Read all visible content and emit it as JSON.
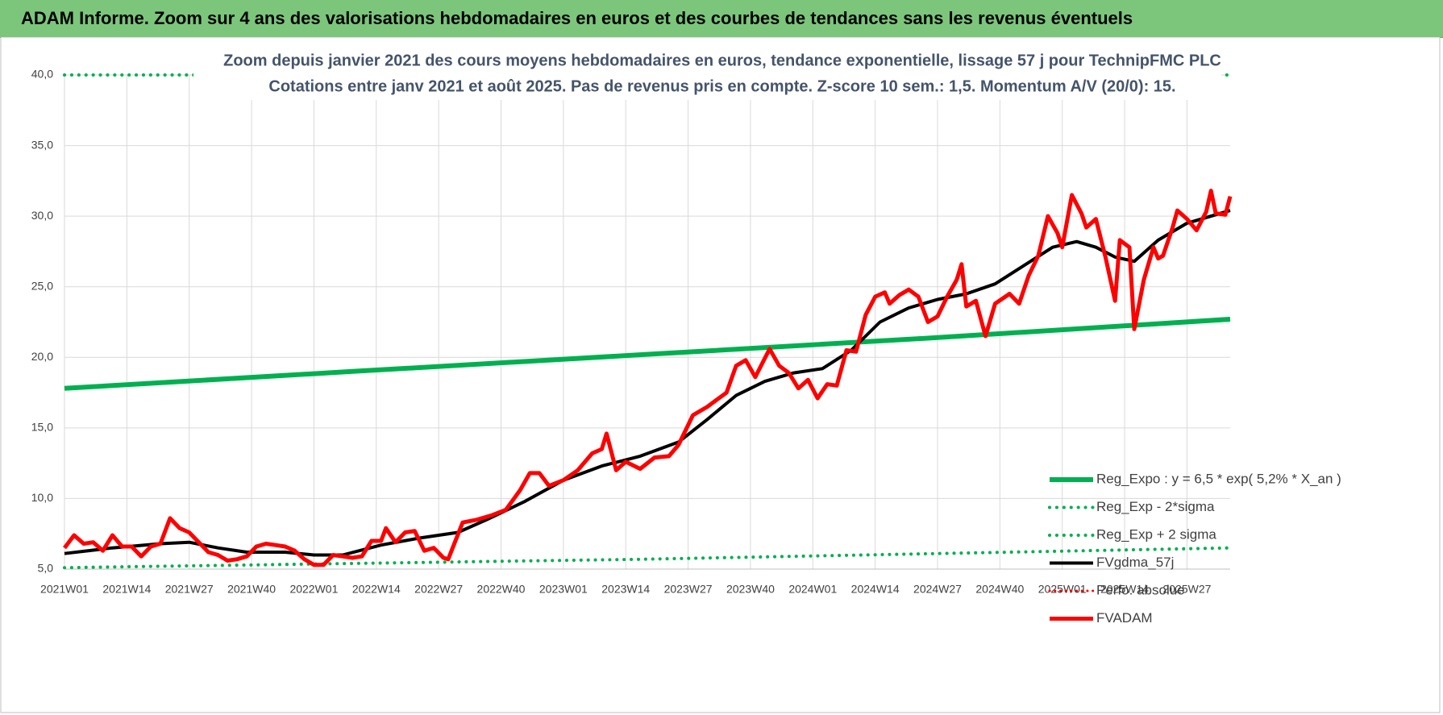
{
  "header": {
    "title": "ADAM Informe. Zoom sur 4 ans des valorisations hebdomadaires en euros et des courbes de tendances sans les revenus éventuels"
  },
  "chart_data": {
    "type": "line",
    "title": "Zoom depuis janvier 2021 des cours moyens hebdomadaires en euros, tendance exponentielle, lissage 57 j pour TechnipFMC PLC",
    "subtitle": "Cotations entre janv 2021 et août 2025.  Pas de revenus pris en compte. Z-score 10 sem.: 1,5. Momentum A/V (20/0): 15.",
    "xlim": [
      0,
      243
    ],
    "ylim": [
      5,
      40
    ],
    "grid": true,
    "legend": "lower right",
    "yticks": [
      {
        "value": 5,
        "label": "5,0"
      },
      {
        "value": 10,
        "label": "10,0"
      },
      {
        "value": 15,
        "label": "15,0"
      },
      {
        "value": 20,
        "label": "20,0"
      },
      {
        "value": 25,
        "label": "25,0"
      },
      {
        "value": 30,
        "label": "30,0"
      },
      {
        "value": 35,
        "label": "35,0"
      },
      {
        "value": 40,
        "label": "40,0"
      }
    ],
    "xticks": [
      {
        "value": 0,
        "label": "2021W01"
      },
      {
        "value": 13,
        "label": "2021W14"
      },
      {
        "value": 26,
        "label": "2021W27"
      },
      {
        "value": 39,
        "label": "2021W40"
      },
      {
        "value": 52,
        "label": "2022W01"
      },
      {
        "value": 65,
        "label": "2022W14"
      },
      {
        "value": 78,
        "label": "2022W27"
      },
      {
        "value": 91,
        "label": "2022W40"
      },
      {
        "value": 104,
        "label": "2023W01"
      },
      {
        "value": 117,
        "label": "2023W14"
      },
      {
        "value": 130,
        "label": "2023W27"
      },
      {
        "value": 143,
        "label": "2023W40"
      },
      {
        "value": 156,
        "label": "2024W01"
      },
      {
        "value": 169,
        "label": "2024W14"
      },
      {
        "value": 182,
        "label": "2024W27"
      },
      {
        "value": 195,
        "label": "2024W40"
      },
      {
        "value": 208,
        "label": "2025W01"
      },
      {
        "value": 221,
        "label": "2025W14"
      },
      {
        "value": 234,
        "label": "2025W27"
      }
    ],
    "series": [
      {
        "name": "Reg_Expo : y = 6,5 * exp( 5,2% *  X_an )",
        "color": "#00b050",
        "style": "solid",
        "width": 6,
        "x": [
          0,
          60,
          121,
          182,
          243
        ],
        "values": [
          17.8,
          19.0,
          20.2,
          21.4,
          22.7
        ]
      },
      {
        "name": "Reg_Exp - 2*sigma",
        "color": "#00b050",
        "style": "dotted",
        "width": 4,
        "x": [
          0,
          121,
          243
        ],
        "values": [
          5.1,
          5.7,
          6.5
        ]
      },
      {
        "name": "Reg_Exp + 2 sigma",
        "color": "#00b050",
        "style": "dotted",
        "width": 4,
        "x": [
          0,
          243
        ],
        "values": [
          40,
          40
        ]
      },
      {
        "name": "FVgdma_57j",
        "color": "#000000",
        "style": "solid",
        "width": 4,
        "x": [
          0,
          10,
          20,
          26,
          32,
          38,
          46,
          52,
          58,
          66,
          74,
          82,
          88,
          96,
          104,
          112,
          120,
          128,
          134,
          140,
          146,
          152,
          158,
          164,
          170,
          176,
          182,
          188,
          194,
          200,
          206,
          211,
          215,
          219,
          223,
          228,
          234,
          243
        ],
        "values": [
          6.1,
          6.5,
          6.8,
          6.9,
          6.5,
          6.2,
          6.2,
          6.0,
          6.0,
          6.7,
          7.2,
          7.6,
          8.5,
          9.8,
          11.3,
          12.3,
          13.0,
          14.0,
          15.6,
          17.3,
          18.3,
          18.9,
          19.2,
          20.5,
          22.5,
          23.5,
          24.1,
          24.5,
          25.2,
          26.5,
          27.8,
          28.2,
          27.8,
          27.1,
          26.8,
          28.3,
          29.5,
          30.4
        ]
      },
      {
        "name": "Perfo. absolue",
        "color": "#ff0000",
        "style": "dotted",
        "width": 3,
        "x": [],
        "values": []
      },
      {
        "name": "FVADAM",
        "color": "#ff0000",
        "style": "solid",
        "width": 5,
        "x": [
          0,
          2,
          4,
          6,
          8,
          10,
          12,
          14,
          16,
          18,
          20,
          22,
          24,
          26,
          28,
          30,
          32,
          34,
          36,
          38,
          40,
          42,
          44,
          46,
          48,
          50,
          52,
          54,
          56,
          58,
          60,
          62,
          64,
          66,
          67,
          69,
          71,
          73,
          75,
          77,
          79,
          80,
          83,
          86,
          89,
          92,
          95,
          97,
          99,
          101,
          104,
          107,
          110,
          112,
          113,
          115,
          117,
          120,
          123,
          126,
          128,
          131,
          134,
          136,
          138,
          140,
          142,
          144,
          147,
          149,
          151,
          153,
          155,
          157,
          159,
          161,
          163,
          165,
          167,
          169,
          171,
          172,
          174,
          176,
          178,
          180,
          182,
          184,
          186,
          187,
          188,
          190,
          192,
          194,
          197,
          199,
          201,
          203,
          205,
          207,
          208,
          210,
          212,
          213,
          215,
          217,
          219,
          220,
          222,
          223,
          225,
          227,
          228,
          229,
          231,
          232,
          234,
          236,
          238,
          239,
          240,
          242,
          243
        ],
        "values": [
          6.5,
          7.4,
          6.8,
          6.9,
          6.3,
          7.4,
          6.6,
          6.6,
          5.9,
          6.6,
          6.8,
          8.6,
          7.9,
          7.6,
          6.9,
          6.2,
          6.0,
          5.6,
          5.7,
          5.9,
          6.6,
          6.8,
          6.7,
          6.6,
          6.3,
          5.7,
          5.3,
          5.3,
          6.0,
          5.9,
          5.8,
          5.9,
          7.0,
          7.0,
          7.9,
          6.9,
          7.6,
          7.7,
          6.3,
          6.5,
          5.8,
          5.7,
          8.3,
          8.5,
          8.8,
          9.2,
          10.6,
          11.8,
          11.8,
          10.9,
          11.3,
          12.0,
          13.2,
          13.5,
          14.6,
          12.0,
          12.6,
          12.1,
          12.9,
          13.0,
          13.8,
          15.9,
          16.5,
          17.0,
          17.5,
          19.4,
          19.8,
          18.6,
          20.6,
          19.4,
          18.9,
          17.8,
          18.4,
          17.1,
          18.1,
          18.0,
          20.5,
          20.4,
          23.0,
          24.3,
          24.6,
          23.8,
          24.4,
          24.8,
          24.3,
          22.5,
          22.9,
          24.3,
          25.5,
          26.6,
          23.6,
          24.0,
          21.5,
          23.8,
          24.5,
          23.8,
          25.8,
          27.2,
          30.0,
          28.8,
          27.8,
          31.5,
          30.2,
          29.2,
          29.8,
          27.1,
          24.0,
          28.3,
          27.8,
          22.0,
          25.5,
          27.8,
          27.0,
          27.2,
          29.2,
          30.4,
          29.8,
          29.0,
          30.3,
          31.8,
          30.2,
          30.1,
          31.4
        ]
      }
    ]
  }
}
